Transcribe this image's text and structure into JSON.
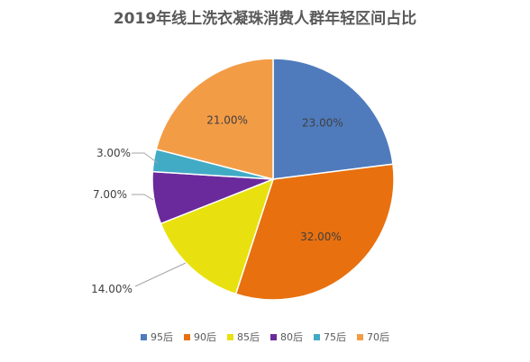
{
  "chart_data": {
    "type": "pie",
    "title": "2019年线上洗衣凝珠消费人群年轻区间占比",
    "categories": [
      "95后",
      "90后",
      "85后",
      "80后",
      "75后",
      "70后"
    ],
    "values": [
      23.0,
      32.0,
      14.0,
      7.0,
      3.0,
      21.0
    ],
    "labels": [
      "23.00%",
      "32.00%",
      "14.00%",
      "7.00%",
      "3.00%",
      "21.00%"
    ],
    "colors": [
      "#4f7bbd",
      "#e8700f",
      "#e8e10f",
      "#6a2a9c",
      "#41abc6",
      "#f39c46"
    ],
    "legend_position": "bottom"
  }
}
